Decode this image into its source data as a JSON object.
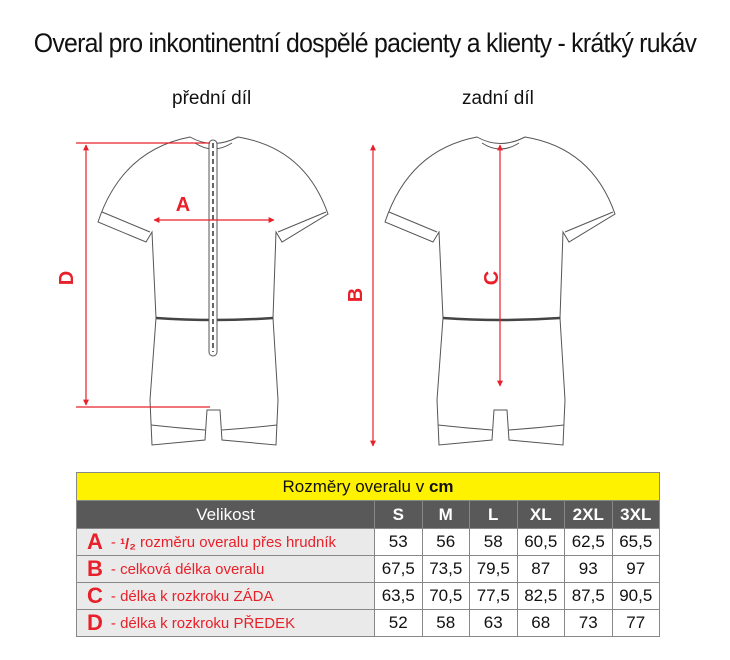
{
  "title": "Overal pro inkontinentní dospělé pacienty a klienty - krátký rukáv",
  "views": {
    "front": "přední díl",
    "back": "zadní díl"
  },
  "markers": {
    "a": "A",
    "b": "B",
    "c": "C",
    "d": "D"
  },
  "colors": {
    "accent": "#e8202a",
    "header_yellow": "#fff200",
    "header_gray": "#595959"
  },
  "table": {
    "caption_prefix": "Rozměry overalu v",
    "caption_unit": "cm",
    "size_header": "Velikost",
    "sizes": [
      "S",
      "M",
      "L",
      "XL",
      "2XL",
      "3XL"
    ],
    "rows": [
      {
        "letter": "A",
        "desc_prefix": "- ",
        "fraction": "¹/₂",
        "desc": " rozměru overalu přes hrudník",
        "values": [
          "53",
          "56",
          "58",
          "60,5",
          "62,5",
          "65,5"
        ]
      },
      {
        "letter": "B",
        "desc_prefix": "- ",
        "fraction": "",
        "desc": "celková délka overalu",
        "values": [
          "67,5",
          "73,5",
          "79,5",
          "87",
          "93",
          "97"
        ]
      },
      {
        "letter": "C",
        "desc_prefix": "- ",
        "fraction": "",
        "desc": "délka k rozkroku ZÁDA",
        "values": [
          "63,5",
          "70,5",
          "77,5",
          "82,5",
          "87,5",
          "90,5"
        ]
      },
      {
        "letter": "D",
        "desc_prefix": "- ",
        "fraction": "",
        "desc": "délka k rozkroku PŘEDEK",
        "values": [
          "52",
          "58",
          "63",
          "68",
          "73",
          "77"
        ]
      }
    ]
  }
}
